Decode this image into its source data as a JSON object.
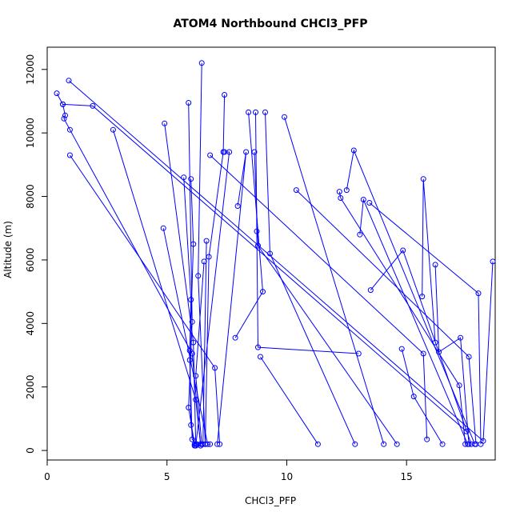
{
  "chart_data": {
    "type": "scatter",
    "title": "ATOM4 Northbound CHCl3_PFP",
    "xlabel": "CHCl3_PFP",
    "ylabel": "Altitude (m)",
    "xlim": [
      0,
      18.7
    ],
    "ylim": [
      -300,
      12700
    ],
    "x_ticks": [
      0,
      5,
      10,
      15
    ],
    "x_tick_labels": [
      "0",
      "5",
      "10",
      "15"
    ],
    "y_ticks": [
      0,
      2000,
      4000,
      6000,
      8000,
      10000,
      12000
    ],
    "y_tick_labels": [
      "0",
      "2000",
      "4000",
      "6000",
      "8000",
      "10000",
      "12000"
    ],
    "grid": false,
    "legend": "none",
    "series": [
      {
        "color": "#0000ff",
        "marker": "open-circle",
        "profiles": [
          [
            {
              "x": 0.9,
              "y": 11650
            },
            {
              "x": 18.2,
              "y": 300
            },
            {
              "x": 18.6,
              "y": 5950
            }
          ],
          [
            {
              "x": 0.4,
              "y": 11250
            },
            {
              "x": 0.65,
              "y": 10900
            },
            {
              "x": 0.75,
              "y": 10550
            },
            {
              "x": 0.7,
              "y": 10450
            },
            {
              "x": 0.95,
              "y": 10100
            },
            {
              "x": 6.05,
              "y": 3050
            },
            {
              "x": 6.4,
              "y": 150
            }
          ],
          [
            {
              "x": 0.65,
              "y": 10900
            },
            {
              "x": 1.9,
              "y": 10850
            },
            {
              "x": 17.5,
              "y": 600
            }
          ],
          [
            {
              "x": 0.95,
              "y": 9300
            },
            {
              "x": 7.0,
              "y": 2600
            },
            {
              "x": 7.2,
              "y": 200
            }
          ],
          [
            {
              "x": 2.75,
              "y": 10100
            },
            {
              "x": 6.2,
              "y": 1600
            },
            {
              "x": 6.4,
              "y": 200
            }
          ],
          [
            {
              "x": 4.85,
              "y": 7000
            },
            {
              "x": 6.7,
              "y": 200
            },
            {
              "x": 6.8,
              "y": 200
            }
          ],
          [
            {
              "x": 4.9,
              "y": 10300
            },
            {
              "x": 6.1,
              "y": 3400
            },
            {
              "x": 6.2,
              "y": 200
            }
          ],
          [
            {
              "x": 5.7,
              "y": 8600
            },
            {
              "x": 6.0,
              "y": 4750
            },
            {
              "x": 5.95,
              "y": 3150
            },
            {
              "x": 6.0,
              "y": 800
            },
            {
              "x": 6.15,
              "y": 150
            }
          ],
          [
            {
              "x": 5.9,
              "y": 10950
            },
            {
              "x": 6.05,
              "y": 4050
            },
            {
              "x": 5.9,
              "y": 1350
            },
            {
              "x": 6.15,
              "y": 200
            }
          ],
          [
            {
              "x": 6.0,
              "y": 8550
            },
            {
              "x": 6.1,
              "y": 6500
            },
            {
              "x": 5.95,
              "y": 2850
            },
            {
              "x": 6.05,
              "y": 350
            },
            {
              "x": 6.25,
              "y": 200
            }
          ],
          [
            {
              "x": 6.45,
              "y": 12200
            },
            {
              "x": 6.3,
              "y": 5500
            },
            {
              "x": 6.6,
              "y": 200
            }
          ],
          [
            {
              "x": 6.55,
              "y": 5950
            },
            {
              "x": 6.2,
              "y": 2350
            },
            {
              "x": 6.45,
              "y": 200
            }
          ],
          [
            {
              "x": 6.65,
              "y": 6600
            },
            {
              "x": 6.5,
              "y": 200
            }
          ],
          [
            {
              "x": 6.8,
              "y": 9300
            },
            {
              "x": 15.7,
              "y": 3050
            },
            {
              "x": 15.85,
              "y": 350
            }
          ],
          [
            {
              "x": 7.4,
              "y": 11200
            },
            {
              "x": 7.35,
              "y": 9400
            },
            {
              "x": 6.75,
              "y": 6100
            },
            {
              "x": 6.6,
              "y": 200
            }
          ],
          [
            {
              "x": 7.4,
              "y": 9400
            },
            {
              "x": 7.6,
              "y": 9400
            },
            {
              "x": 6.2,
              "y": 150
            }
          ],
          [
            {
              "x": 7.95,
              "y": 7700
            },
            {
              "x": 8.3,
              "y": 9400
            },
            {
              "x": 7.1,
              "y": 200
            }
          ],
          [
            {
              "x": 7.85,
              "y": 3550
            },
            {
              "x": 9.0,
              "y": 5000
            },
            {
              "x": 8.4,
              "y": 10650
            }
          ],
          [
            {
              "x": 8.7,
              "y": 10650
            },
            {
              "x": 8.75,
              "y": 6900
            },
            {
              "x": 8.8,
              "y": 3250
            },
            {
              "x": 13.0,
              "y": 3050
            }
          ],
          [
            {
              "x": 8.65,
              "y": 9400
            },
            {
              "x": 8.8,
              "y": 6450
            },
            {
              "x": 14.6,
              "y": 200
            }
          ],
          [
            {
              "x": 8.9,
              "y": 2950
            },
            {
              "x": 11.3,
              "y": 200
            }
          ],
          [
            {
              "x": 9.1,
              "y": 10650
            },
            {
              "x": 9.3,
              "y": 6200
            },
            {
              "x": 12.85,
              "y": 200
            }
          ],
          [
            {
              "x": 9.9,
              "y": 10500
            },
            {
              "x": 14.05,
              "y": 200
            }
          ],
          [
            {
              "x": 10.4,
              "y": 8200
            },
            {
              "x": 17.6,
              "y": 2950
            },
            {
              "x": 17.9,
              "y": 200
            }
          ],
          [
            {
              "x": 12.2,
              "y": 8150
            },
            {
              "x": 12.25,
              "y": 7950
            },
            {
              "x": 17.2,
              "y": 2050
            },
            {
              "x": 17.45,
              "y": 200
            }
          ],
          [
            {
              "x": 12.5,
              "y": 8200
            },
            {
              "x": 12.8,
              "y": 9450
            },
            {
              "x": 17.85,
              "y": 200
            }
          ],
          [
            {
              "x": 13.05,
              "y": 6800
            },
            {
              "x": 13.2,
              "y": 7900
            },
            {
              "x": 17.55,
              "y": 200
            }
          ],
          [
            {
              "x": 13.45,
              "y": 7800
            },
            {
              "x": 18.0,
              "y": 4950
            },
            {
              "x": 18.1,
              "y": 200
            }
          ],
          [
            {
              "x": 13.5,
              "y": 5050
            },
            {
              "x": 14.85,
              "y": 6300
            },
            {
              "x": 17.7,
              "y": 200
            }
          ],
          [
            {
              "x": 14.8,
              "y": 3200
            },
            {
              "x": 15.3,
              "y": 1700
            },
            {
              "x": 16.5,
              "y": 200
            }
          ],
          [
            {
              "x": 15.65,
              "y": 4850
            },
            {
              "x": 15.7,
              "y": 8550
            },
            {
              "x": 16.2,
              "y": 3400
            }
          ],
          [
            {
              "x": 16.2,
              "y": 5850
            },
            {
              "x": 16.35,
              "y": 3100
            },
            {
              "x": 17.25,
              "y": 3550
            },
            {
              "x": 17.6,
              "y": 200
            }
          ]
        ]
      }
    ]
  }
}
